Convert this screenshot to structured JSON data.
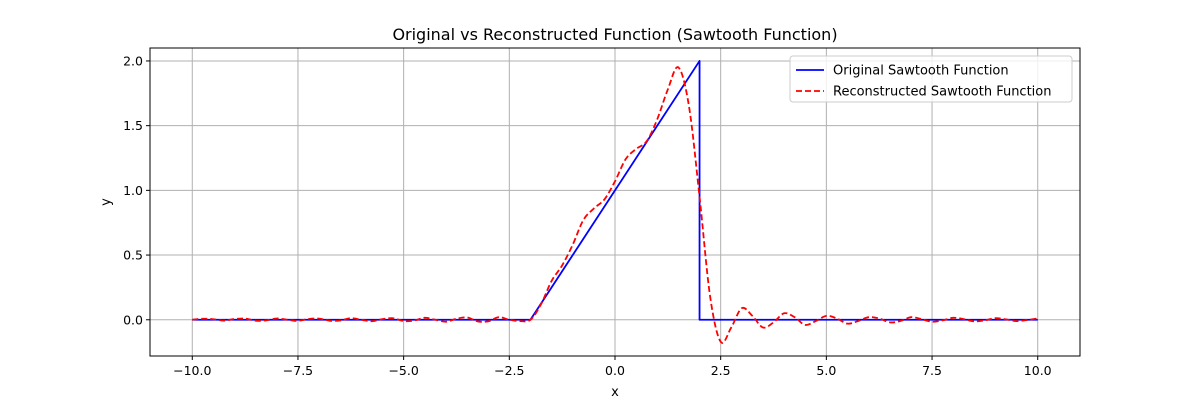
{
  "chart_data": {
    "type": "line",
    "title": "Original vs Reconstructed Function (Sawtooth Function)",
    "xlabel": "x",
    "ylabel": "y",
    "xlim": [
      -11.0,
      11.0
    ],
    "ylim": [
      -0.28,
      2.1
    ],
    "xticks": [
      -10.0,
      -7.5,
      -5.0,
      -2.5,
      0.0,
      2.5,
      5.0,
      7.5,
      10.0
    ],
    "xtick_labels": [
      "−10.0",
      "−7.5",
      "−5.0",
      "−2.5",
      "0.0",
      "2.5",
      "5.0",
      "7.5",
      "10.0"
    ],
    "yticks": [
      0.0,
      0.5,
      1.0,
      1.5,
      2.0
    ],
    "ytick_labels": [
      "0.0",
      "0.5",
      "1.0",
      "1.5",
      "2.0"
    ],
    "grid": true,
    "legend_position": "top-right",
    "series": [
      {
        "name": "Original Sawtooth Function",
        "color": "#0000ff",
        "style": "solid",
        "x": [
          -10.0,
          -2.0,
          2.0,
          2.0,
          10.0
        ],
        "y": [
          0.0,
          0.0,
          2.0,
          0.0,
          0.0
        ]
      },
      {
        "name": "Reconstructed Sawtooth Function",
        "color": "#ff0000",
        "style": "dashed",
        "x": [
          -10.0,
          -9.75,
          -9.5,
          -9.25,
          -9.0,
          -8.75,
          -8.5,
          -8.25,
          -8.0,
          -7.75,
          -7.5,
          -7.25,
          -7.0,
          -6.75,
          -6.5,
          -6.25,
          -6.0,
          -5.75,
          -5.5,
          -5.25,
          -5.0,
          -4.75,
          -4.5,
          -4.25,
          -4.0,
          -3.75,
          -3.5,
          -3.25,
          -3.0,
          -2.75,
          -2.5,
          -2.25,
          -2.0,
          -1.75,
          -1.5,
          -1.25,
          -1.0,
          -0.75,
          -0.5,
          -0.25,
          0.0,
          0.25,
          0.5,
          0.75,
          1.0,
          1.25,
          1.5,
          1.75,
          2.0,
          2.25,
          2.5,
          2.75,
          3.0,
          3.25,
          3.5,
          3.75,
          4.0,
          4.25,
          4.5,
          4.75,
          5.0,
          5.25,
          5.5,
          5.75,
          6.0,
          6.25,
          6.5,
          6.75,
          7.0,
          7.25,
          7.5,
          7.75,
          8.0,
          8.25,
          8.5,
          8.75,
          9.0,
          9.25,
          9.5,
          9.75,
          10.0
        ],
        "y": [
          0.0,
          0.008,
          0.004,
          -0.006,
          0.006,
          0.009,
          -0.007,
          -0.005,
          0.01,
          0.0,
          -0.008,
          0.006,
          0.009,
          -0.007,
          -0.006,
          0.012,
          0.0,
          -0.011,
          0.005,
          0.012,
          -0.01,
          -0.006,
          0.015,
          0.0,
          -0.015,
          0.008,
          0.018,
          -0.012,
          -0.012,
          0.02,
          0.0,
          -0.01,
          0.0,
          0.12,
          0.3,
          0.42,
          0.58,
          0.77,
          0.86,
          0.93,
          1.07,
          1.24,
          1.32,
          1.38,
          1.55,
          1.78,
          1.95,
          1.65,
          0.95,
          0.18,
          -0.17,
          -0.06,
          0.09,
          0.03,
          -0.06,
          -0.02,
          0.05,
          0.02,
          -0.04,
          -0.01,
          0.03,
          0.01,
          -0.03,
          -0.01,
          0.02,
          0.01,
          -0.02,
          -0.01,
          0.02,
          0.005,
          -0.015,
          -0.005,
          0.015,
          0.005,
          -0.012,
          -0.004,
          0.012,
          0.003,
          -0.01,
          -0.002,
          0.01
        ]
      }
    ]
  }
}
